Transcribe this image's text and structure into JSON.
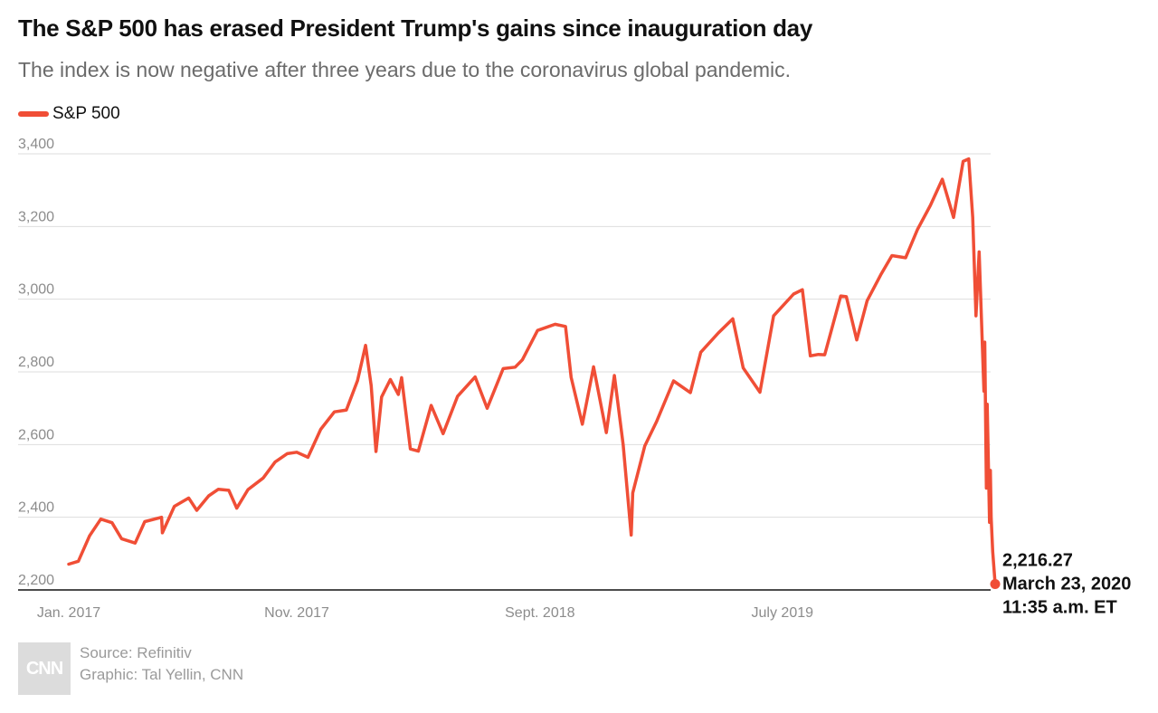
{
  "header": {
    "title": "The S&P 500 has erased President Trump's gains since inauguration day",
    "subtitle": "The index is now negative after three years due to the coronavirus global pandemic."
  },
  "legend": {
    "label": "S&P 500",
    "color": "#f04e36"
  },
  "annotation": {
    "value": "2,216.27",
    "date": "March 23, 2020",
    "time": "11:35 a.m. ET"
  },
  "footer": {
    "logo_text": "CNN",
    "source": "Source: Refinitiv",
    "graphic": "Graphic: Tal Yellin, CNN"
  },
  "chart_data": {
    "type": "line",
    "title": "The S&P 500 has erased President Trump's gains since inauguration day",
    "subtitle": "The index is now negative after three years due to the coronavirus global pandemic.",
    "xlabel": "",
    "ylabel": "",
    "ylim": [
      2200,
      3400
    ],
    "yticks": [
      2200,
      2400,
      2600,
      2800,
      3000,
      3200,
      3400
    ],
    "ytick_labels": [
      "2,200",
      "2,400",
      "2,600",
      "2,800",
      "3,000",
      "3,200",
      "3,400"
    ],
    "xlim": [
      "2017-01-20",
      "2020-03-23"
    ],
    "xticks": [
      {
        "label": "Jan. 2017",
        "date": "2017-01-20"
      },
      {
        "label": "Nov. 2017",
        "date": "2017-11-01"
      },
      {
        "label": "Sept. 2018",
        "date": "2018-09-01"
      },
      {
        "label": "July 2019",
        "date": "2019-07-01"
      }
    ],
    "grid": "horizontal",
    "legend_position": "top-left",
    "series": [
      {
        "name": "S&P 500",
        "color": "#f04e36",
        "points": [
          [
            "2017-01-20",
            2271
          ],
          [
            "2017-02-01",
            2279
          ],
          [
            "2017-02-15",
            2349
          ],
          [
            "2017-03-01",
            2395
          ],
          [
            "2017-03-15",
            2385
          ],
          [
            "2017-03-27",
            2341
          ],
          [
            "2017-04-13",
            2329
          ],
          [
            "2017-04-25",
            2388
          ],
          [
            "2017-05-16",
            2400
          ],
          [
            "2017-05-17",
            2357
          ],
          [
            "2017-06-01",
            2430
          ],
          [
            "2017-06-19",
            2453
          ],
          [
            "2017-06-29",
            2419
          ],
          [
            "2017-07-14",
            2459
          ],
          [
            "2017-07-26",
            2477
          ],
          [
            "2017-08-08",
            2474
          ],
          [
            "2017-08-18",
            2425
          ],
          [
            "2017-09-01",
            2476
          ],
          [
            "2017-09-20",
            2508
          ],
          [
            "2017-10-05",
            2552
          ],
          [
            "2017-10-20",
            2575
          ],
          [
            "2017-11-01",
            2579
          ],
          [
            "2017-11-15",
            2565
          ],
          [
            "2017-12-01",
            2642
          ],
          [
            "2017-12-18",
            2690
          ],
          [
            "2018-01-02",
            2695
          ],
          [
            "2018-01-16",
            2776
          ],
          [
            "2018-01-26",
            2873
          ],
          [
            "2018-02-02",
            2762
          ],
          [
            "2018-02-08",
            2581
          ],
          [
            "2018-02-15",
            2731
          ],
          [
            "2018-02-26",
            2779
          ],
          [
            "2018-03-08",
            2738
          ],
          [
            "2018-03-12",
            2784
          ],
          [
            "2018-03-23",
            2588
          ],
          [
            "2018-04-02",
            2582
          ],
          [
            "2018-04-18",
            2708
          ],
          [
            "2018-05-03",
            2630
          ],
          [
            "2018-05-21",
            2733
          ],
          [
            "2018-06-12",
            2786
          ],
          [
            "2018-06-27",
            2700
          ],
          [
            "2018-07-17",
            2809
          ],
          [
            "2018-08-01",
            2813
          ],
          [
            "2018-08-10",
            2833
          ],
          [
            "2018-08-29",
            2914
          ],
          [
            "2018-09-20",
            2931
          ],
          [
            "2018-10-03",
            2925
          ],
          [
            "2018-10-10",
            2785
          ],
          [
            "2018-10-24",
            2656
          ],
          [
            "2018-11-07",
            2814
          ],
          [
            "2018-11-23",
            2633
          ],
          [
            "2018-12-03",
            2790
          ],
          [
            "2018-12-14",
            2600
          ],
          [
            "2018-12-24",
            2351
          ],
          [
            "2018-12-26",
            2467
          ],
          [
            "2019-01-10",
            2596
          ],
          [
            "2019-01-25",
            2664
          ],
          [
            "2019-02-15",
            2775
          ],
          [
            "2019-03-08",
            2743
          ],
          [
            "2019-03-21",
            2854
          ],
          [
            "2019-04-12",
            2907
          ],
          [
            "2019-04-30",
            2946
          ],
          [
            "2019-05-13",
            2811
          ],
          [
            "2019-06-03",
            2744
          ],
          [
            "2019-06-20",
            2954
          ],
          [
            "2019-07-15",
            3014
          ],
          [
            "2019-07-26",
            3026
          ],
          [
            "2019-08-05",
            2844
          ],
          [
            "2019-08-15",
            2848
          ],
          [
            "2019-08-23",
            2847
          ],
          [
            "2019-09-12",
            3009
          ],
          [
            "2019-09-19",
            3007
          ],
          [
            "2019-10-02",
            2888
          ],
          [
            "2019-10-15",
            2996
          ],
          [
            "2019-11-01",
            3067
          ],
          [
            "2019-11-15",
            3120
          ],
          [
            "2019-12-02",
            3114
          ],
          [
            "2019-12-17",
            3192
          ],
          [
            "2020-01-02",
            3258
          ],
          [
            "2020-01-17",
            3330
          ],
          [
            "2020-01-31",
            3225
          ],
          [
            "2020-02-12",
            3379
          ],
          [
            "2020-02-19",
            3386
          ],
          [
            "2020-02-24",
            3225
          ],
          [
            "2020-02-28",
            2954
          ],
          [
            "2020-03-03",
            3130
          ],
          [
            "2020-03-09",
            2747
          ],
          [
            "2020-03-10",
            2882
          ],
          [
            "2020-03-12",
            2480
          ],
          [
            "2020-03-13",
            2711
          ],
          [
            "2020-03-16",
            2386
          ],
          [
            "2020-03-17",
            2529
          ],
          [
            "2020-03-18",
            2398
          ],
          [
            "2020-03-20",
            2305
          ],
          [
            "2020-03-23",
            2216.27
          ]
        ]
      }
    ],
    "annotations": [
      {
        "date": "2020-03-23",
        "value": 2216.27,
        "text": [
          "2,216.27",
          "March 23, 2020",
          "11:35 a.m. ET"
        ]
      }
    ]
  }
}
